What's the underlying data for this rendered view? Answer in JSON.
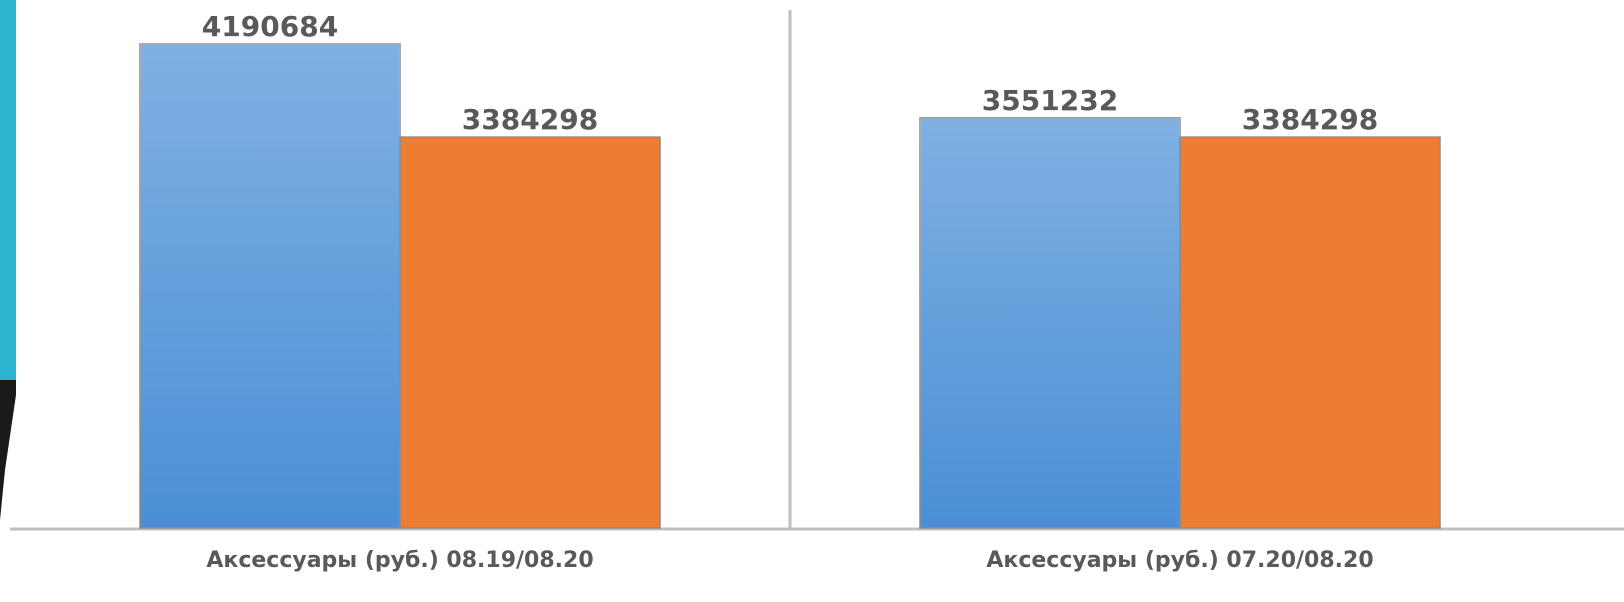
{
  "chart_data": {
    "type": "bar",
    "categories": [
      "Аксессуары (руб.) 08.19/08.20",
      "Аксессуары (руб.) 07.20/08.20"
    ],
    "series": [
      {
        "color": "#4a8fd6",
        "gradient": true,
        "values": [
          4190684,
          3551232
        ]
      },
      {
        "color": "#ed7d31",
        "gradient": false,
        "values": [
          3384298,
          3384298
        ]
      }
    ]
  }
}
